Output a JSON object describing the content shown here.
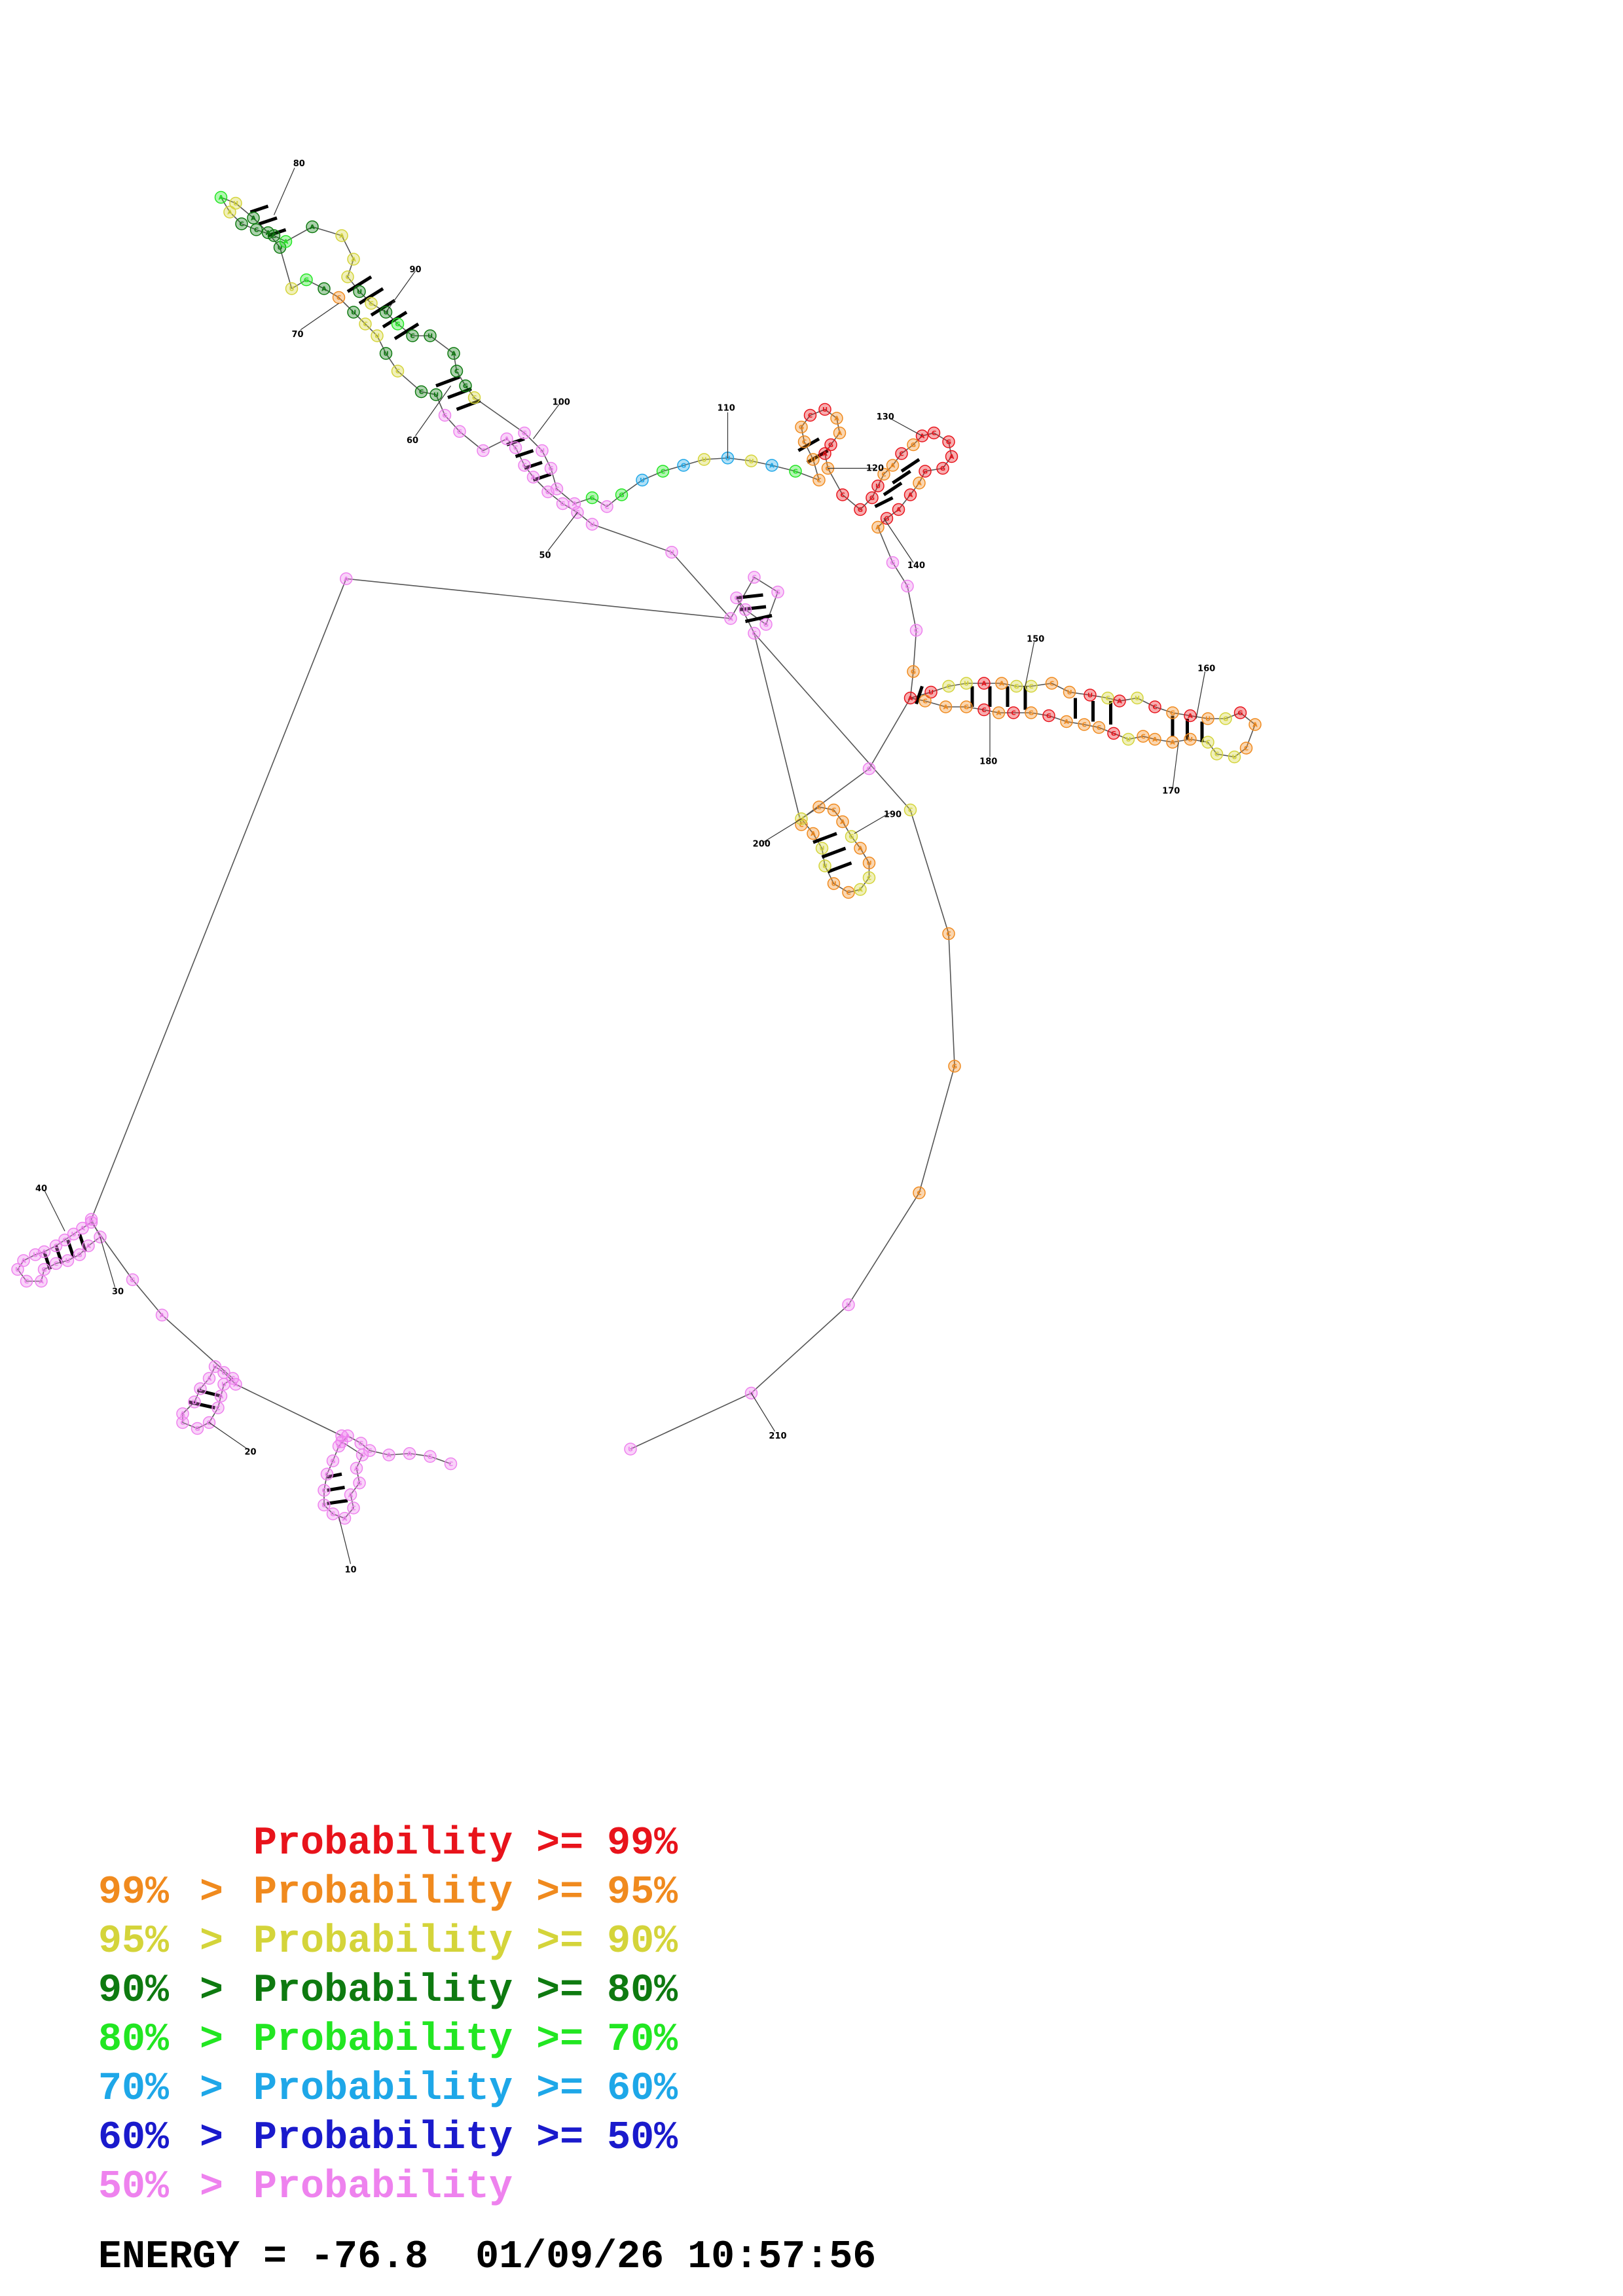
{
  "colors": {
    "red": "#e8131b",
    "orange": "#f08a1e",
    "yellow": "#d4d43a",
    "darkgreen": "#0e7a10",
    "green": "#22e622",
    "cyan": "#1ea7e8",
    "blue": "#1a1acc",
    "pink": "#ee82ee"
  },
  "legend": [
    {
      "left": "",
      "op": "",
      "main": "Probability >= 99%",
      "color": "#e8131b"
    },
    {
      "left": "99%",
      "op": ">",
      "main": "Probability >= 95%",
      "color": "#f08a1e"
    },
    {
      "left": "95%",
      "op": ">",
      "main": "Probability >= 90%",
      "color": "#d4d43a"
    },
    {
      "left": "90%",
      "op": ">",
      "main": "Probability >= 80%",
      "color": "#0e7a10"
    },
    {
      "left": "80%",
      "op": ">",
      "main": "Probability >= 70%",
      "color": "#22e622"
    },
    {
      "left": "70%",
      "op": ">",
      "main": "Probability >= 60%",
      "color": "#1ea7e8"
    },
    {
      "left": "60%",
      "op": ">",
      "main": "Probability >= 50%",
      "color": "#1a1acc"
    },
    {
      "left": "50%",
      "op": ">",
      "main": "Probability",
      "color": "#ee82ee"
    }
  ],
  "footer": {
    "energy": "ENERGY = -76.8",
    "timestamp": "01/09/26 10:57:56"
  },
  "tick_labels": [
    "10",
    "20",
    "30",
    "40",
    "50",
    "60",
    "70",
    "80",
    "90",
    "100",
    "110",
    "120",
    "130",
    "140",
    "150",
    "160",
    "170",
    "180",
    "190",
    "200",
    "210"
  ]
}
